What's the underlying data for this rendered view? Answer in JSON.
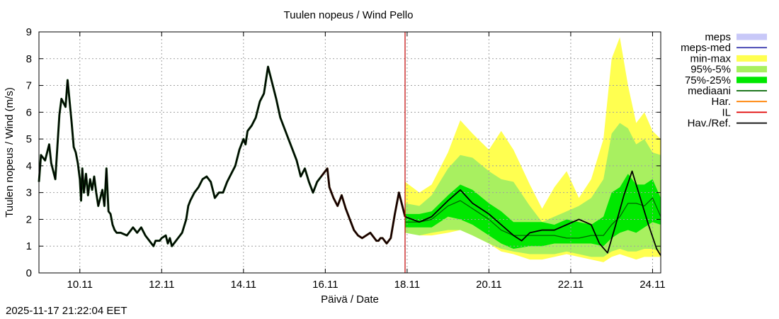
{
  "chart_data": {
    "type": "line",
    "title": "Tuulen nopeus / Wind  Pello",
    "xlabel": "Päivä / Date",
    "ylabel": "Tuulen nopeus / Wind (m/s)",
    "x_unit": "days since 2025-11-09 00:00",
    "xlim": [
      0,
      15.2
    ],
    "ylim": [
      0,
      9
    ],
    "grid": true,
    "legend_position": "right",
    "yticks": [
      0,
      1,
      2,
      3,
      4,
      5,
      6,
      7,
      8,
      9
    ],
    "xticks": [
      {
        "x": 1,
        "label": "10.11"
      },
      {
        "x": 3,
        "label": "12.11"
      },
      {
        "x": 5,
        "label": "14.11"
      },
      {
        "x": 7,
        "label": "16.11"
      },
      {
        "x": 9,
        "label": "18.11"
      },
      {
        "x": 11,
        "label": "20.11"
      },
      {
        "x": 13,
        "label": "22.11"
      },
      {
        "x": 15,
        "label": "24.11"
      }
    ],
    "forecast_start_x": 8.95,
    "legend": [
      {
        "key": "meps",
        "label": "meps",
        "kind": "box",
        "color": "#c8c8f8"
      },
      {
        "key": "meps_med",
        "label": "meps-med",
        "kind": "line",
        "color": "#4040b0"
      },
      {
        "key": "minmax",
        "label": "min-max",
        "kind": "box",
        "color": "#ffff50"
      },
      {
        "key": "p95_5",
        "label": "95%-5%",
        "kind": "box",
        "color": "#a8f060"
      },
      {
        "key": "p75_25",
        "label": "75%-25%",
        "kind": "box",
        "color": "#00e800"
      },
      {
        "key": "mediaani",
        "label": "mediaani",
        "kind": "line",
        "color": "#006400"
      },
      {
        "key": "har",
        "label": "Har.",
        "kind": "line",
        "color": "#ff8000"
      },
      {
        "key": "il",
        "label": "IL",
        "kind": "line",
        "color": "#e00000"
      },
      {
        "key": "hav",
        "label": "Hav./Ref.",
        "kind": "line",
        "color": "#000000"
      }
    ],
    "band_x": [
      8.95,
      9.3,
      9.6,
      10.0,
      10.3,
      10.6,
      11.0,
      11.3,
      11.6,
      12.0,
      12.3,
      12.6,
      12.9,
      13.2,
      13.5,
      13.8,
      14.0,
      14.2,
      14.4,
      14.6,
      14.8,
      15.0,
      15.2
    ],
    "minmax_upper": [
      3.4,
      3.0,
      3.3,
      4.5,
      5.7,
      5.2,
      4.6,
      5.3,
      4.6,
      3.3,
      2.4,
      3.2,
      3.8,
      2.8,
      3.5,
      5.0,
      8.0,
      8.8,
      7.0,
      5.6,
      6.0,
      5.3,
      5.0
    ],
    "minmax_lower": [
      1.6,
      1.4,
      1.4,
      1.5,
      1.6,
      1.4,
      1.1,
      0.8,
      0.7,
      0.5,
      0.5,
      0.6,
      0.7,
      0.6,
      0.5,
      0.4,
      0.6,
      0.7,
      0.6,
      0.5,
      0.6,
      0.6,
      0.6
    ],
    "p95_upper": [
      2.6,
      2.5,
      2.9,
      3.9,
      4.4,
      4.3,
      3.8,
      3.5,
      3.4,
      2.5,
      1.9,
      2.1,
      2.3,
      2.5,
      2.8,
      3.5,
      5.2,
      5.6,
      5.4,
      4.8,
      5.0,
      4.5,
      4.4
    ],
    "p95_lower": [
      1.5,
      1.4,
      1.5,
      1.6,
      1.6,
      1.4,
      1.1,
      0.9,
      0.8,
      0.7,
      0.7,
      0.7,
      0.8,
      0.7,
      0.6,
      0.6,
      0.8,
      0.9,
      0.8,
      0.8,
      0.9,
      0.9,
      0.8
    ],
    "p75_upper": [
      2.2,
      2.2,
      2.3,
      2.9,
      3.3,
      3.1,
      2.6,
      2.3,
      1.9,
      1.9,
      1.9,
      1.8,
      2.0,
      1.9,
      1.8,
      2.1,
      3.0,
      3.2,
      3.7,
      3.3,
      3.3,
      3.5,
      2.8
    ],
    "p75_lower": [
      1.7,
      1.7,
      1.7,
      2.1,
      2.0,
      1.8,
      1.4,
      1.1,
      0.9,
      1.0,
      1.0,
      1.1,
      1.1,
      1.1,
      1.1,
      1.0,
      1.3,
      1.5,
      1.6,
      1.5,
      1.7,
      1.9,
      1.8
    ],
    "mediaani": [
      1.9,
      1.9,
      2.0,
      2.5,
      2.7,
      2.4,
      2.0,
      1.6,
      1.4,
      1.4,
      1.4,
      1.4,
      1.3,
      1.3,
      1.4,
      1.4,
      1.8,
      2.1,
      2.6,
      2.6,
      2.5,
      2.8,
      2.1
    ],
    "hav_ref": {
      "x": [
        8.95,
        9.3,
        9.6,
        10.0,
        10.3,
        10.6,
        11.0,
        11.3,
        11.6,
        11.8,
        12.0,
        12.3,
        12.6,
        12.9,
        13.2,
        13.5,
        13.7,
        13.9,
        14.1,
        14.3,
        14.5,
        14.7,
        14.9,
        15.1,
        15.2
      ],
      "y": [
        2.1,
        1.9,
        2.1,
        2.7,
        3.1,
        2.6,
        2.2,
        1.8,
        1.4,
        1.2,
        1.5,
        1.6,
        1.6,
        1.8,
        2.0,
        1.8,
        1.1,
        0.75,
        1.8,
        2.9,
        3.8,
        2.8,
        1.8,
        0.9,
        0.65
      ]
    },
    "observed": {
      "x": [
        0.0,
        0.05,
        0.15,
        0.25,
        0.3,
        0.4,
        0.5,
        0.55,
        0.65,
        0.7,
        0.8,
        0.85,
        0.9,
        0.95,
        1.0,
        1.03,
        1.06,
        1.1,
        1.15,
        1.2,
        1.25,
        1.3,
        1.35,
        1.4,
        1.45,
        1.5,
        1.55,
        1.6,
        1.65,
        1.7,
        1.75,
        1.8,
        1.85,
        1.9,
        2.0,
        2.15,
        2.3,
        2.4,
        2.5,
        2.6,
        2.7,
        2.8,
        2.85,
        2.95,
        3.0,
        3.1,
        3.15,
        3.2,
        3.25,
        3.3,
        3.4,
        3.5,
        3.6,
        3.65,
        3.7,
        3.8,
        3.9,
        4.0,
        4.1,
        4.2,
        4.3,
        4.4,
        4.5,
        4.6,
        4.7,
        4.8,
        4.9,
        5.0,
        5.05,
        5.1,
        5.2,
        5.3,
        5.35,
        5.4,
        5.5,
        5.55,
        5.6,
        5.7,
        5.8,
        5.9,
        6.0,
        6.1,
        6.2,
        6.3,
        6.4,
        6.5,
        6.6,
        6.7,
        6.8,
        6.9,
        7.0,
        7.05,
        7.1,
        7.2,
        7.3,
        7.4,
        7.5,
        7.6,
        7.7,
        7.8,
        7.9,
        8.0,
        8.1,
        8.2,
        8.25,
        8.3,
        8.35,
        8.4,
        8.5,
        8.6,
        8.7,
        8.8,
        8.95
      ],
      "y": [
        3.4,
        4.4,
        4.2,
        4.8,
        4.1,
        3.5,
        5.9,
        6.5,
        6.2,
        7.2,
        5.6,
        4.7,
        4.5,
        4.1,
        3.5,
        2.7,
        3.9,
        3.0,
        3.7,
        2.9,
        3.5,
        3.1,
        3.6,
        3.0,
        2.5,
        2.8,
        3.1,
        2.5,
        3.9,
        2.3,
        2.2,
        1.8,
        1.6,
        1.5,
        1.5,
        1.4,
        1.7,
        1.5,
        1.7,
        1.4,
        1.2,
        1.0,
        1.2,
        1.2,
        1.3,
        1.4,
        1.1,
        1.3,
        1.0,
        1.1,
        1.3,
        1.5,
        2.0,
        2.5,
        2.7,
        3.0,
        3.2,
        3.5,
        3.6,
        3.4,
        2.8,
        3.0,
        3.0,
        3.4,
        3.7,
        4.0,
        4.6,
        5.0,
        4.8,
        5.3,
        5.5,
        5.8,
        6.1,
        6.4,
        6.7,
        7.2,
        7.7,
        7.1,
        6.5,
        5.8,
        5.4,
        5.0,
        4.6,
        4.2,
        3.6,
        3.9,
        3.4,
        3.0,
        3.4,
        3.6,
        3.8,
        3.9,
        3.2,
        2.8,
        2.5,
        2.9,
        2.4,
        2.0,
        1.6,
        1.4,
        1.3,
        1.4,
        1.5,
        1.3,
        1.2,
        1.2,
        1.3,
        1.3,
        1.1,
        1.3,
        2.2,
        3.0,
        2.1
      ]
    }
  },
  "footer": {
    "timestamp": "2025-11-17 21:22:04 EET"
  }
}
